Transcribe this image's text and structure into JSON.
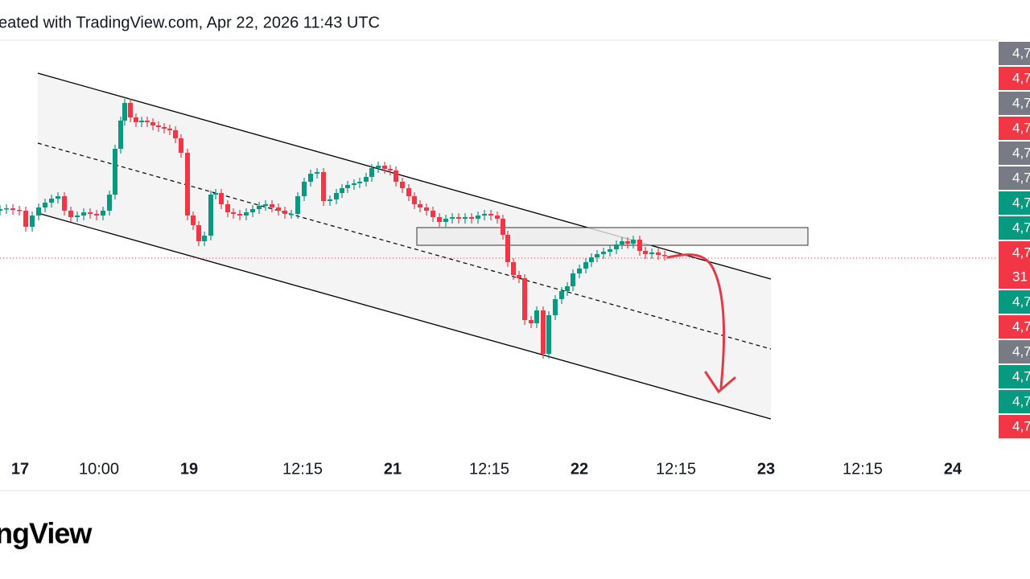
{
  "header": {
    "text": "eated with TradingView.com, Apr 22, 2026 11:43 UTC"
  },
  "x_axis": {
    "labels": [
      {
        "label": "17",
        "bold": true
      },
      {
        "label": "10:00",
        "bold": false
      },
      {
        "label": "19",
        "bold": true
      },
      {
        "label": "12:15",
        "bold": false
      },
      {
        "label": "21",
        "bold": true
      },
      {
        "label": "12:15",
        "bold": false
      },
      {
        "label": "22",
        "bold": true
      },
      {
        "label": "12:15",
        "bold": false
      },
      {
        "label": "23",
        "bold": true
      },
      {
        "label": "12:15",
        "bold": false
      },
      {
        "label": "24",
        "bold": true
      }
    ]
  },
  "price_scale": {
    "tags": [
      {
        "lines": [
          "4,7"
        ],
        "color": "#787b86"
      },
      {
        "lines": [
          "4,7"
        ],
        "color": "#f23645"
      },
      {
        "lines": [
          "4,7"
        ],
        "color": "#787b86"
      },
      {
        "lines": [
          "4,7"
        ],
        "color": "#f23645"
      },
      {
        "lines": [
          "4,7"
        ],
        "color": "#787b86"
      },
      {
        "lines": [
          "4,7"
        ],
        "color": "#787b86"
      },
      {
        "lines": [
          "4,7"
        ],
        "color": "#089981"
      },
      {
        "lines": [
          "4,7"
        ],
        "color": "#089981"
      },
      {
        "lines": [
          "4,7",
          "31"
        ],
        "color": "#f23645"
      },
      {
        "lines": [
          "4,7"
        ],
        "color": "#089981"
      },
      {
        "lines": [
          "4,7"
        ],
        "color": "#f23645"
      },
      {
        "lines": [
          "4,7"
        ],
        "color": "#787b86"
      },
      {
        "lines": [
          "4,7"
        ],
        "color": "#089981"
      },
      {
        "lines": [
          "4,7"
        ],
        "color": "#089981"
      },
      {
        "lines": [
          "4,7"
        ],
        "color": "#f23645"
      }
    ]
  },
  "footer": {
    "logo": "ngView"
  }
}
